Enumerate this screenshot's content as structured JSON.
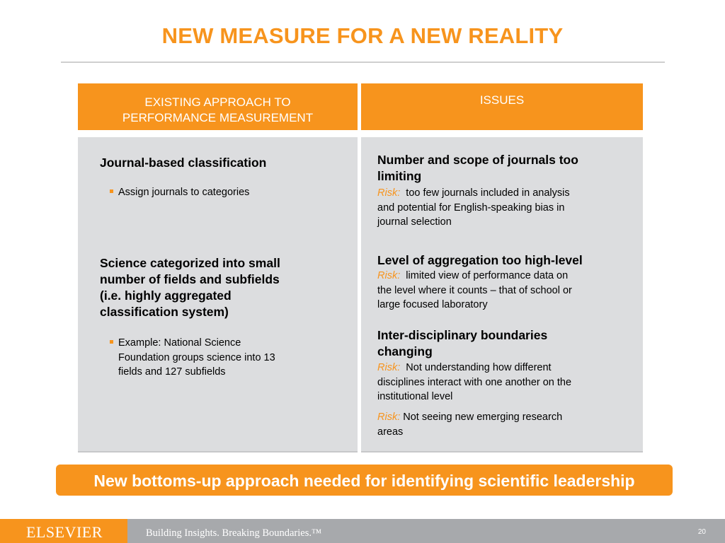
{
  "title": "NEW MEASURE FOR A NEW REALITY",
  "left_header": [
    "EXISTING APPROACH TO",
    "PERFORMANCE MEASUREMENT"
  ],
  "right_header": "ISSUES",
  "left": {
    "section1": {
      "heading": "Journal-based classification",
      "bullet": "Assign journals to categories"
    },
    "section2": {
      "heading": [
        "Science categorized into small",
        "number of fields and subfields",
        "(i.e. highly aggregated",
        "classification system)"
      ],
      "bullet": [
        "Example: National Science",
        "Foundation groups science into 13",
        "fields and 127 subfields"
      ]
    }
  },
  "right": {
    "issue1": {
      "heading": [
        "Number and scope of journals too",
        "limiting"
      ],
      "risk_label": "Risk:",
      "text": [
        "too few journals included in analysis",
        "and potential for English-speaking bias in",
        "journal selection"
      ]
    },
    "issue2": {
      "heading": "Level of aggregation too high-level",
      "risk_label": "Risk:",
      "text": [
        "limited view of performance data on",
        "the level where it counts – that of school or",
        "large focused laboratory"
      ]
    },
    "issue3": {
      "heading": [
        "Inter-disciplinary boundaries",
        "changing"
      ],
      "risk_label": "Risk:",
      "text": [
        "Not understanding how different",
        "disciplines interact with one another on the",
        "institutional level"
      ]
    },
    "issue4": {
      "risk_label": "Risk:",
      "text": [
        "Not seeing new emerging research",
        "areas"
      ]
    }
  },
  "banner": "New bottoms-up approach needed for identifying scientific leadership",
  "footer": {
    "logo": "ELSEVIER",
    "tagline": "Building Insights. Breaking Boundaries.™",
    "page_number": "20"
  },
  "colors": {
    "accent": "#f7941d",
    "panel": "#dcdddf",
    "footer_bar": "#a7a9ac"
  }
}
